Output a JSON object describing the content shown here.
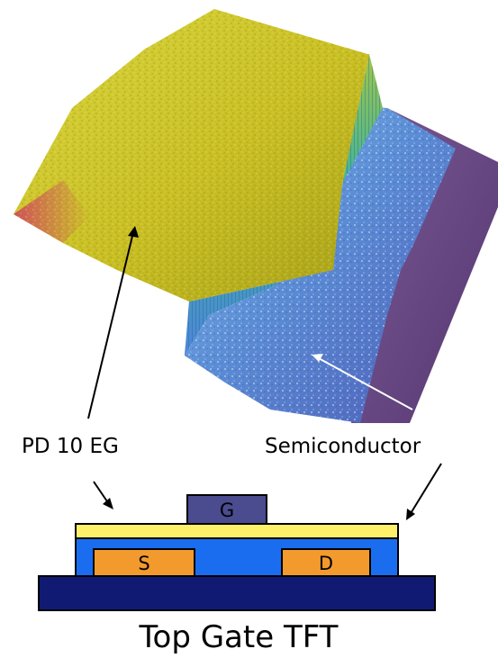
{
  "labels": {
    "polymer": "PD 10 EG",
    "semiconductor": "Semiconductor",
    "gate": "G",
    "source": "S",
    "drain": "D",
    "caption": "Top Gate TFT"
  },
  "colors": {
    "substrate": "#111a72",
    "semiconductor_layer": "#1b6df0",
    "dielectric_layer": "#fff06a",
    "electrode": "#f39a2e",
    "gate_electrode": "#4b4b90",
    "surface_yellow": "#d4c62a",
    "surface_blue": "#5a86d2",
    "surface_purple": "#6a4a86"
  },
  "icons": {
    "afm_image": "afm-3d-surface"
  }
}
